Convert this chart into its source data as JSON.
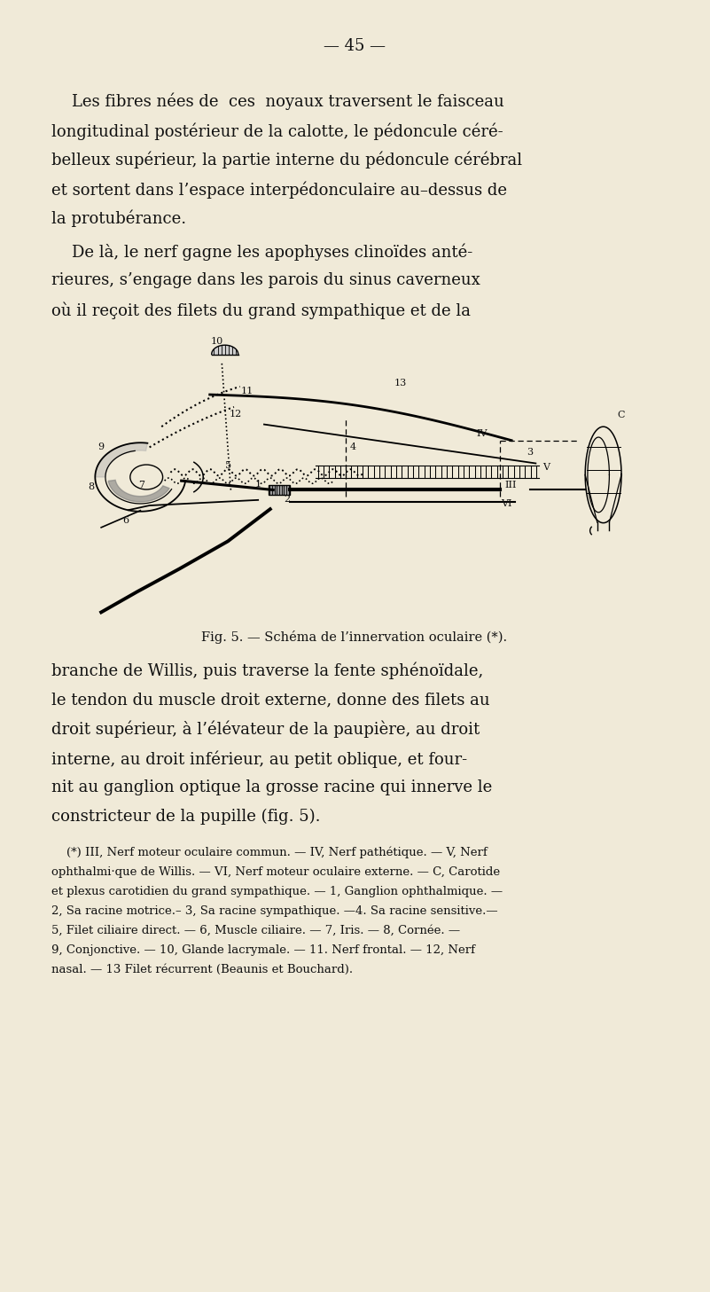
{
  "background_color": "#f0ead8",
  "text_color": "#111111",
  "page_number": "— 45 —",
  "p1_lines": [
    "    Les fibres nées de  ces  noyaux traversent le faisceau",
    "longitudinal postérieur de la calotte, le pédoncule céré-",
    "belleux supérieur, la partie interne du pédoncule cérébral",
    "et sortent dans l’espace interpédonculaire au–dessus de",
    "la protubérance."
  ],
  "p2_lines": [
    "    De là, le nerf gagne les apophyses clinoïdes anté-",
    "rieures, s’engage dans les parois du sinus caverneux",
    "où il reçoit des filets du grand sympathique et de la"
  ],
  "p3_lines": [
    "branche de Willis, puis traverse la fente sphénoïdale,",
    "le tendon du muscle droit externe, donne des filets au",
    "droit supérieur, à l’élévateur de la paupière, au droit",
    "interne, au droit inférieur, au petit oblique, et four-",
    "nit au ganglion optique la grosse racine qui innerve le",
    "constricteur de la pupille (fig. 5)."
  ],
  "fig_caption": "Fig. 5. — Schéma de l’innervation oculaire (*).",
  "fn_lines": [
    "    (*) III, Nerf moteur oculaire commun. — IV, Nerf pathétique. — V, Nerf",
    "ophthalmi·que de Willis. — VI, Nerf moteur oculaire externe. — C, Carotide",
    "et plexus carotidien du grand sympathique. — 1, Ganglion ophthalmique. —",
    "2, Sa racine motrice.– 3, Sa racine sympathique. —4. Sa racine sensitive.—",
    "5, Filet ciliaire direct. — 6, Muscle ciliaire. — 7, Iris. — 8, Cornée. —",
    "9, Conjonctive. — 10, Glande lacrymale. — 11. Nerf frontal. — 12, Nerf",
    "nasal. — 13 Filet récurrent (Beaunis et Bouchard)."
  ]
}
